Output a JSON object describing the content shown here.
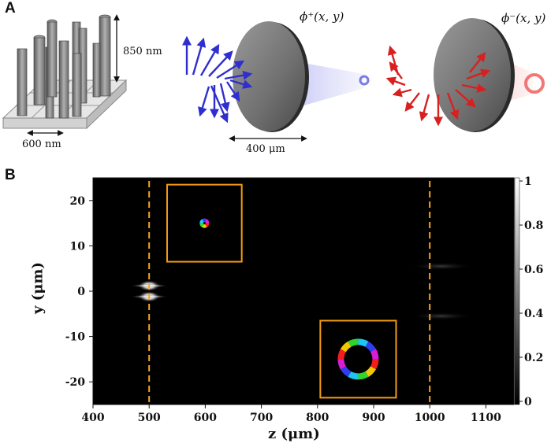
{
  "panel_a": {
    "label": "A",
    "nanopillar_height": "850 nm",
    "nanopillar_period": "600 nm",
    "lens_diameter": "400 μm",
    "phi_plus": "ϕ⁺(x, y)",
    "phi_minus": "ϕ⁻(x, y)",
    "colors": {
      "plus": "#3a3ad8",
      "minus": "#e02a2a",
      "disk": "#7b7b7b"
    }
  },
  "panel_b": {
    "label": "B",
    "colorbar": {
      "ticks": [
        "1",
        "0.8",
        "0.6",
        "0.4",
        "0.2",
        "0"
      ]
    },
    "inset_color": "#f39c12",
    "dashed_line_color": "#f5a623"
  },
  "chart_data": {
    "type": "heatmap",
    "title": "",
    "xlabel": "z (μm)",
    "ylabel": "y (μm)",
    "xlim": [
      400,
      1150
    ],
    "ylim": [
      -25,
      25
    ],
    "xticks": [
      400,
      500,
      600,
      700,
      800,
      900,
      1000,
      1100
    ],
    "yticks": [
      20,
      10,
      0,
      -10,
      -20
    ],
    "xtick_labels": [
      "400",
      "500",
      "600",
      "700",
      "800",
      "900",
      "1000",
      "1100"
    ],
    "ytick_labels": [
      "20",
      "10",
      "0",
      "-10",
      "-20"
    ],
    "colorbar_range": [
      0,
      1
    ],
    "focal_planes_z": [
      500,
      1000
    ],
    "bright_spots": [
      {
        "z": 500,
        "y": 1.2,
        "intensity": 1.0
      },
      {
        "z": 500,
        "y": -1.2,
        "intensity": 1.0
      },
      {
        "z": 1020,
        "y": 5.5,
        "intensity": 0.12
      },
      {
        "z": 1020,
        "y": -5.5,
        "intensity": 0.12
      }
    ],
    "insets": [
      {
        "name": "focal-spot-500",
        "z_range": [
          532,
          665
        ],
        "y_range": [
          6.5,
          23.5
        ]
      },
      {
        "name": "donut-1000",
        "z_range": [
          805,
          940
        ],
        "y_range": [
          -23.5,
          -6.5
        ]
      }
    ]
  }
}
